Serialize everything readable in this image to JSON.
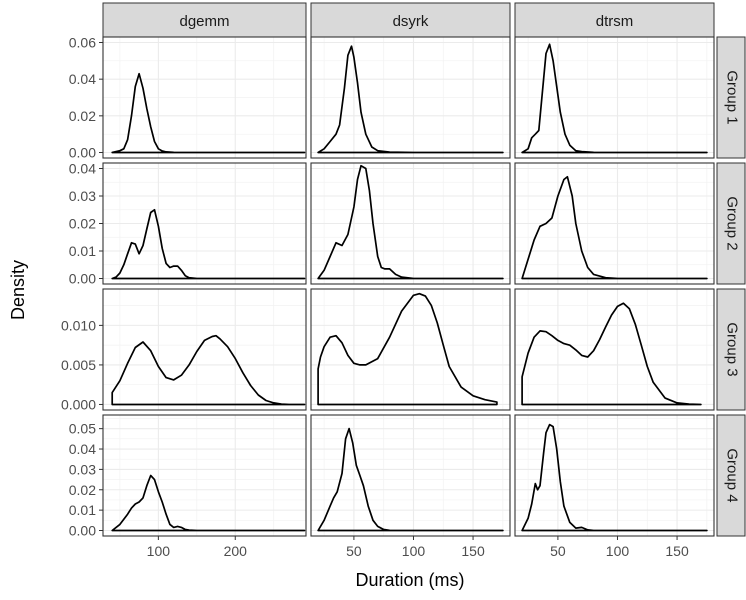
{
  "chart_data": {
    "type": "line",
    "subtype": "faceted density plot",
    "xlabel": "Duration (ms)",
    "ylabel": "Density",
    "grid": true,
    "legend": "none",
    "line_color": "#000000",
    "strip_fill": "#d9d9d9",
    "columns": [
      {
        "label": "dgemm",
        "xlim": [
          28,
          292
        ],
        "x_ticks": [
          100,
          200
        ],
        "x_tick_labels": [
          "100",
          "200"
        ]
      },
      {
        "label": "dsyrk",
        "xlim": [
          14,
          181
        ],
        "x_ticks": [
          50,
          100,
          150
        ],
        "x_tick_labels": [
          "50",
          "100",
          "150"
        ]
      },
      {
        "label": "dtrsm",
        "xlim": [
          14,
          181
        ],
        "x_ticks": [
          50,
          100,
          150
        ],
        "x_tick_labels": [
          "50",
          "100",
          "150"
        ]
      }
    ],
    "rows": [
      {
        "label": "Group 1",
        "ylim": [
          -0.003,
          0.063
        ],
        "y_ticks": [
          0,
          0.02,
          0.04,
          0.06
        ],
        "y_tick_labels": [
          "0.00",
          "0.02",
          "0.04",
          "0.06"
        ]
      },
      {
        "label": "Group 2",
        "ylim": [
          -0.002,
          0.042
        ],
        "y_ticks": [
          0,
          0.01,
          0.02,
          0.03,
          0.04
        ],
        "y_tick_labels": [
          "0.00",
          "0.01",
          "0.02",
          "0.03",
          "0.04"
        ]
      },
      {
        "label": "Group 3",
        "ylim": [
          -0.0007,
          0.0146
        ],
        "y_ticks": [
          0,
          0.005,
          0.01
        ],
        "y_tick_labels": [
          "0.000",
          "0.005",
          "0.010"
        ]
      },
      {
        "label": "Group 4",
        "ylim": [
          -0.0027,
          0.0567
        ],
        "y_ticks": [
          0,
          0.01,
          0.02,
          0.03,
          0.04,
          0.05
        ],
        "y_tick_labels": [
          "0.00",
          "0.01",
          "0.02",
          "0.03",
          "0.04",
          "0.05"
        ]
      }
    ],
    "series": [
      {
        "row": 0,
        "col": 0,
        "name": "dgemm Group 1",
        "x": [
          40,
          45,
          50,
          55,
          60,
          65,
          70,
          75,
          80,
          85,
          90,
          95,
          100,
          105,
          110,
          120,
          140,
          200,
          290
        ],
        "y": [
          0,
          0.0005,
          0.001,
          0.002,
          0.007,
          0.02,
          0.036,
          0.043,
          0.035,
          0.024,
          0.014,
          0.006,
          0.002,
          0.0008,
          0.0003,
          0.0001,
          0,
          0,
          0
        ]
      },
      {
        "row": 0,
        "col": 1,
        "name": "dsyrk Group 1",
        "x": [
          20,
          25,
          30,
          35,
          38,
          42,
          45,
          48,
          50,
          53,
          56,
          60,
          65,
          70,
          80,
          100,
          140,
          175
        ],
        "y": [
          0,
          0.002,
          0.006,
          0.01,
          0.015,
          0.035,
          0.053,
          0.058,
          0.052,
          0.038,
          0.022,
          0.01,
          0.003,
          0.001,
          0.0002,
          0,
          0,
          0
        ]
      },
      {
        "row": 0,
        "col": 2,
        "name": "dtrsm Group 1",
        "x": [
          20,
          25,
          28,
          31,
          34,
          38,
          40,
          43,
          46,
          49,
          52,
          56,
          60,
          65,
          70,
          80,
          100,
          140,
          175
        ],
        "y": [
          0,
          0.002,
          0.008,
          0.01,
          0.012,
          0.04,
          0.054,
          0.059,
          0.05,
          0.036,
          0.022,
          0.01,
          0.004,
          0.001,
          0.0005,
          0.0001,
          0,
          0,
          0
        ]
      },
      {
        "row": 1,
        "col": 0,
        "name": "dgemm Group 2",
        "x": [
          40,
          45,
          50,
          55,
          60,
          65,
          70,
          75,
          80,
          85,
          90,
          95,
          100,
          105,
          110,
          115,
          120,
          125,
          130,
          135,
          140,
          150,
          200,
          290
        ],
        "y": [
          0,
          0.0005,
          0.002,
          0.005,
          0.009,
          0.013,
          0.0125,
          0.009,
          0.012,
          0.018,
          0.024,
          0.025,
          0.019,
          0.011,
          0.0055,
          0.004,
          0.0045,
          0.0045,
          0.003,
          0.001,
          0.0003,
          0,
          0,
          0
        ]
      },
      {
        "row": 1,
        "col": 1,
        "name": "dsyrk Group 2",
        "x": [
          20,
          25,
          30,
          35,
          40,
          45,
          50,
          53,
          56,
          60,
          63,
          66,
          70,
          73,
          76,
          80,
          85,
          90,
          100,
          140,
          175
        ],
        "y": [
          0,
          0.003,
          0.008,
          0.013,
          0.012,
          0.016,
          0.026,
          0.036,
          0.041,
          0.04,
          0.032,
          0.02,
          0.008,
          0.004,
          0.0035,
          0.0035,
          0.0015,
          0.0005,
          0,
          0,
          0
        ]
      },
      {
        "row": 1,
        "col": 2,
        "name": "dtrsm Group 2",
        "x": [
          20,
          25,
          30,
          35,
          40,
          45,
          50,
          55,
          58,
          62,
          65,
          70,
          75,
          80,
          90,
          100,
          140,
          175
        ],
        "y": [
          0,
          0.007,
          0.014,
          0.019,
          0.02,
          0.022,
          0.03,
          0.036,
          0.037,
          0.03,
          0.02,
          0.01,
          0.004,
          0.0015,
          0.0003,
          0,
          0,
          0
        ]
      },
      {
        "row": 2,
        "col": 0,
        "name": "dgemm Group 3",
        "x": [
          40,
          50,
          60,
          70,
          80,
          90,
          100,
          110,
          120,
          130,
          140,
          150,
          160,
          170,
          175,
          180,
          190,
          200,
          210,
          220,
          230,
          240,
          250,
          260,
          270,
          280,
          290
        ],
        "y": [
          0.0015,
          0.003,
          0.0052,
          0.0072,
          0.0079,
          0.0068,
          0.0048,
          0.0034,
          0.0031,
          0.0037,
          0.005,
          0.0067,
          0.0081,
          0.0086,
          0.0087,
          0.0083,
          0.0073,
          0.0058,
          0.004,
          0.0024,
          0.0012,
          0.0005,
          0.0002,
          5e-05,
          0,
          0,
          0
        ]
      },
      {
        "row": 2,
        "col": 1,
        "name": "dsyrk Group 3",
        "x": [
          20,
          22,
          25,
          30,
          35,
          40,
          45,
          50,
          55,
          60,
          70,
          80,
          90,
          100,
          105,
          110,
          115,
          120,
          125,
          130,
          140,
          150,
          160,
          170
        ],
        "y": [
          0.0045,
          0.006,
          0.0073,
          0.0085,
          0.0087,
          0.0078,
          0.0062,
          0.0052,
          0.005,
          0.005,
          0.0058,
          0.0085,
          0.0118,
          0.0138,
          0.014,
          0.0137,
          0.0125,
          0.0103,
          0.0075,
          0.0048,
          0.0022,
          0.0011,
          0.0006,
          0.0003
        ]
      },
      {
        "row": 2,
        "col": 2,
        "name": "dtrsm Group 3",
        "x": [
          20,
          25,
          30,
          35,
          40,
          45,
          50,
          55,
          60,
          65,
          70,
          75,
          80,
          85,
          90,
          95,
          100,
          105,
          110,
          115,
          120,
          125,
          130,
          140,
          150,
          160,
          170
        ],
        "y": [
          0.0035,
          0.0065,
          0.0085,
          0.0093,
          0.0092,
          0.0087,
          0.0081,
          0.0077,
          0.0075,
          0.0069,
          0.0062,
          0.006,
          0.0068,
          0.0082,
          0.0098,
          0.0113,
          0.0124,
          0.0128,
          0.0121,
          0.0101,
          0.0075,
          0.0048,
          0.0028,
          0.0008,
          0.0002,
          5e-05,
          0
        ]
      },
      {
        "row": 3,
        "col": 0,
        "name": "dgemm Group 4",
        "x": [
          40,
          50,
          60,
          65,
          70,
          75,
          80,
          85,
          90,
          95,
          100,
          105,
          110,
          115,
          120,
          125,
          130,
          135,
          140,
          150,
          200,
          290
        ],
        "y": [
          0,
          0.003,
          0.008,
          0.011,
          0.013,
          0.014,
          0.016,
          0.022,
          0.027,
          0.025,
          0.019,
          0.014,
          0.008,
          0.003,
          0.0015,
          0.002,
          0.0015,
          0.0005,
          0.0002,
          0,
          0,
          0
        ]
      },
      {
        "row": 3,
        "col": 1,
        "name": "dsyrk Group 4",
        "x": [
          20,
          25,
          30,
          33,
          36,
          40,
          43,
          46,
          49,
          52,
          55,
          58,
          62,
          66,
          70,
          75,
          80,
          100,
          140,
          175
        ],
        "y": [
          0,
          0.005,
          0.012,
          0.016,
          0.019,
          0.028,
          0.045,
          0.05,
          0.043,
          0.032,
          0.027,
          0.022,
          0.012,
          0.005,
          0.002,
          0.0005,
          0.0001,
          0,
          0,
          0
        ]
      },
      {
        "row": 3,
        "col": 2,
        "name": "dtrsm Group 4",
        "x": [
          20,
          25,
          28,
          31,
          33,
          35,
          38,
          40,
          43,
          46,
          49,
          52,
          55,
          60,
          65,
          70,
          75,
          80,
          90,
          140,
          175
        ],
        "y": [
          0,
          0.006,
          0.013,
          0.023,
          0.02,
          0.022,
          0.038,
          0.048,
          0.052,
          0.051,
          0.04,
          0.024,
          0.012,
          0.004,
          0.0012,
          0.0015,
          0.0003,
          0,
          0,
          0,
          0
        ]
      }
    ]
  }
}
